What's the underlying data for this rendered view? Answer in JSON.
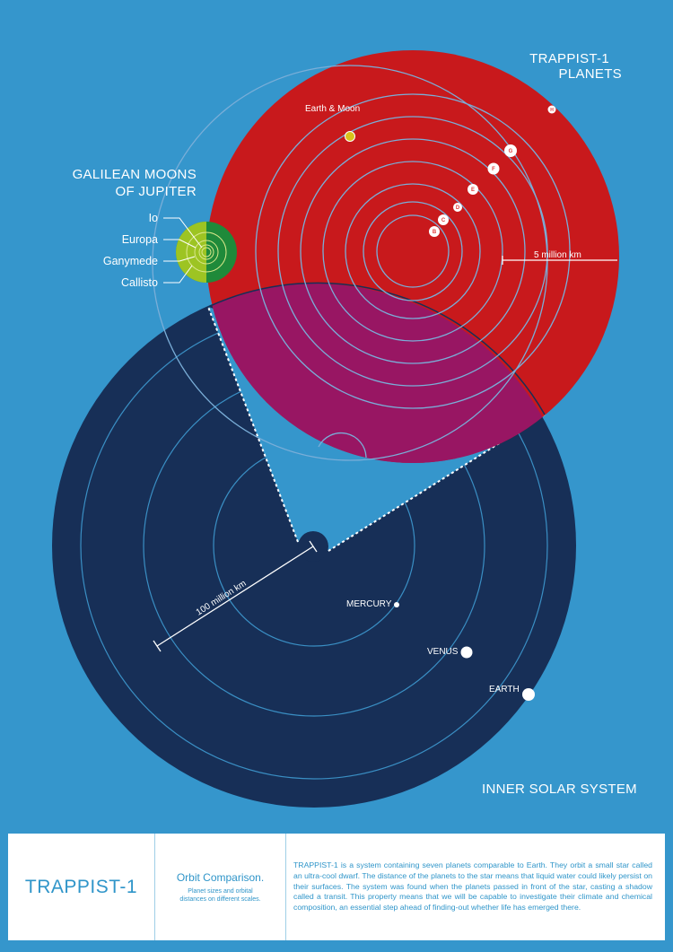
{
  "labels": {
    "trappist_title_line1": "TRAPPIST-1",
    "trappist_title_line2": "PLANETS",
    "galilean_line1": "GALILEAN MOONS",
    "galilean_line2": "OF JUPITER",
    "inner_solar": "INNER SOLAR SYSTEM",
    "earth_moon": "Earth & Moon",
    "scale_trappist": "5 million km",
    "scale_solar": "100 million km"
  },
  "moons": [
    "Io",
    "Europa",
    "Ganymede",
    "Callisto"
  ],
  "trappist_planets": [
    "B",
    "C",
    "D",
    "E",
    "F",
    "G",
    "H"
  ],
  "solar_planets": [
    "MERCURY",
    "VENUS",
    "EARTH"
  ],
  "footer": {
    "name": "TRAPPIST-1",
    "subtitle": "Orbit Comparison.",
    "subnote_line1": "Planet sizes and orbital",
    "subnote_line2": "distances on different scales.",
    "description": "TRAPPIST-1 is a system containing seven planets comparable to Earth. They orbit a small star called an ultra-cool dwarf. The distance of the planets to the star means that liquid water could likely persist on their surfaces. The system was found when the planets passed in front of the star, casting a shadow called a transit. This property means that we will be capable to investigate their climate and chemical composition, an essential step ahead of finding-out whether life has emerged there."
  },
  "colors": {
    "background": "#3596cc",
    "solar_system": "#172f57",
    "trappist": "#c8191c",
    "overlap": "#981663",
    "moon_light": "#9dc423",
    "moon_dark": "#1f8a3a",
    "earth_moon_dot": "#d9c21c",
    "text_blue": "#2f95c9"
  }
}
